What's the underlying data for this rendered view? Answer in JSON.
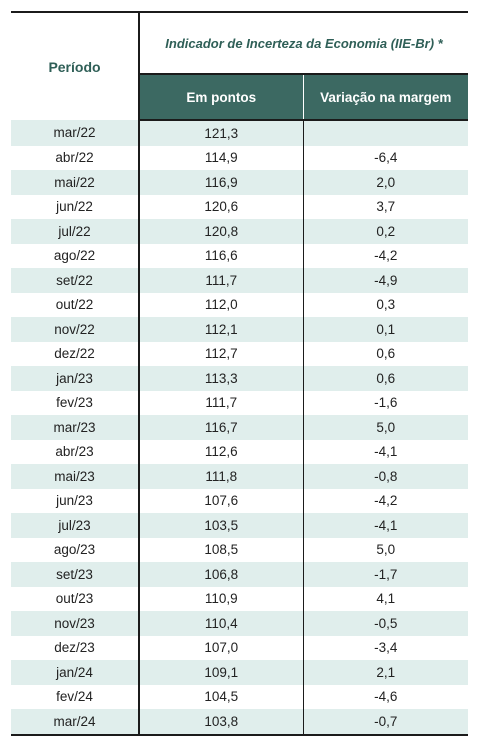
{
  "header": {
    "period_label": "Período",
    "group_title": "Indicador de Incerteza da Economia (IIE-Br) *",
    "col_points": "Em pontos",
    "col_variation": "Variação na margem"
  },
  "rows": [
    {
      "period": "mar/22",
      "points": "121,3",
      "variation": ""
    },
    {
      "period": "abr/22",
      "points": "114,9",
      "variation": "-6,4"
    },
    {
      "period": "mai/22",
      "points": "116,9",
      "variation": "2,0"
    },
    {
      "period": "jun/22",
      "points": "120,6",
      "variation": "3,7"
    },
    {
      "period": "jul/22",
      "points": "120,8",
      "variation": "0,2"
    },
    {
      "period": "ago/22",
      "points": "116,6",
      "variation": "-4,2"
    },
    {
      "period": "set/22",
      "points": "111,7",
      "variation": "-4,9"
    },
    {
      "period": "out/22",
      "points": "112,0",
      "variation": "0,3"
    },
    {
      "period": "nov/22",
      "points": "112,1",
      "variation": "0,1"
    },
    {
      "period": "dez/22",
      "points": "112,7",
      "variation": "0,6"
    },
    {
      "period": "jan/23",
      "points": "113,3",
      "variation": "0,6"
    },
    {
      "period": "fev/23",
      "points": "111,7",
      "variation": "-1,6"
    },
    {
      "period": "mar/23",
      "points": "116,7",
      "variation": "5,0"
    },
    {
      "period": "abr/23",
      "points": "112,6",
      "variation": "-4,1"
    },
    {
      "period": "mai/23",
      "points": "111,8",
      "variation": "-0,8"
    },
    {
      "period": "jun/23",
      "points": "107,6",
      "variation": "-4,2"
    },
    {
      "period": "jul/23",
      "points": "103,5",
      "variation": "-4,1"
    },
    {
      "period": "ago/23",
      "points": "108,5",
      "variation": "5,0"
    },
    {
      "period": "set/23",
      "points": "106,8",
      "variation": "-1,7"
    },
    {
      "period": "out/23",
      "points": "110,9",
      "variation": "4,1"
    },
    {
      "period": "nov/23",
      "points": "110,4",
      "variation": "-0,5"
    },
    {
      "period": "dez/23",
      "points": "107,0",
      "variation": "-3,4"
    },
    {
      "period": "jan/24",
      "points": "109,1",
      "variation": "2,1"
    },
    {
      "period": "fev/24",
      "points": "104,5",
      "variation": "-4,6"
    },
    {
      "period": "mar/24",
      "points": "103,8",
      "variation": "-0,7"
    }
  ],
  "colors": {
    "header_fill": "#3c6962",
    "header_text": "#2f5f57",
    "stripe": "#e0eeec"
  }
}
